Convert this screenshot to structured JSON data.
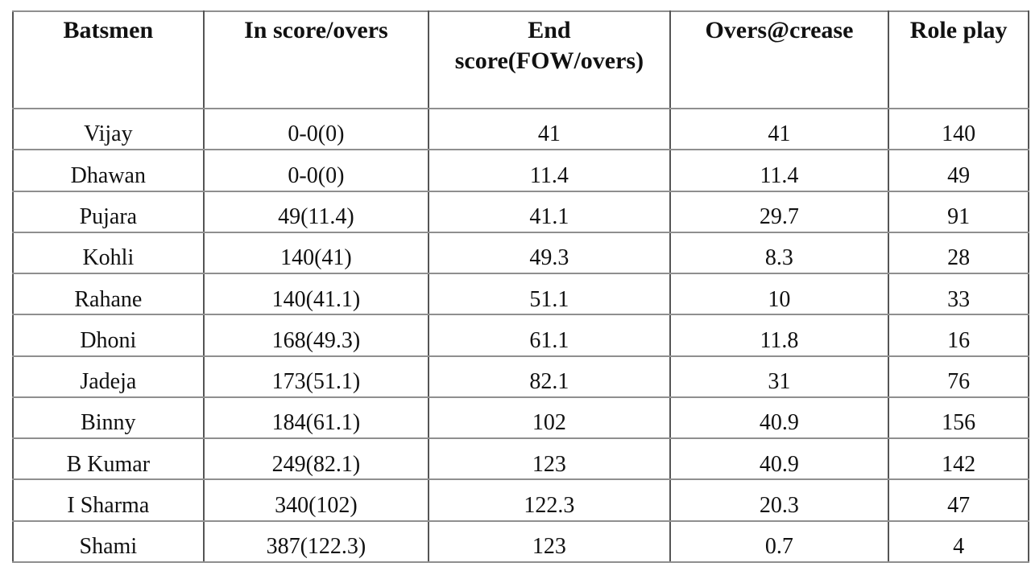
{
  "chart_data": {
    "type": "table",
    "columns": [
      "Batsmen",
      "In score/overs",
      "End score(FOW/overs)",
      "Overs@crease",
      "Role play"
    ],
    "rows": [
      [
        "Vijay",
        "0-0(0)",
        "41",
        "41",
        "140"
      ],
      [
        "Dhawan",
        "0-0(0)",
        "11.4",
        "11.4",
        "49"
      ],
      [
        "Pujara",
        "49(11.4)",
        "41.1",
        "29.7",
        "91"
      ],
      [
        "Kohli",
        "140(41)",
        "49.3",
        "8.3",
        "28"
      ],
      [
        "Rahane",
        "140(41.1)",
        "51.1",
        "10",
        "33"
      ],
      [
        "Dhoni",
        "168(49.3)",
        "61.1",
        "11.8",
        "16"
      ],
      [
        "Jadeja",
        "173(51.1)",
        "82.1",
        "31",
        "76"
      ],
      [
        "Binny",
        "184(61.1)",
        "102",
        "40.9",
        "156"
      ],
      [
        "B Kumar",
        "249(82.1)",
        "123",
        "40.9",
        "142"
      ],
      [
        "I Sharma",
        "340(102)",
        "122.3",
        "20.3",
        "47"
      ],
      [
        "Shami",
        "387(122.3)",
        "123",
        "0.7",
        "4"
      ]
    ],
    "layout": {
      "grid": "on",
      "legend": "none",
      "header_row": true
    }
  },
  "colors": {
    "background": "#ffffff",
    "text": "#111111",
    "border_horizontal": "#8f8f8f",
    "border_vertical": "#555555"
  }
}
